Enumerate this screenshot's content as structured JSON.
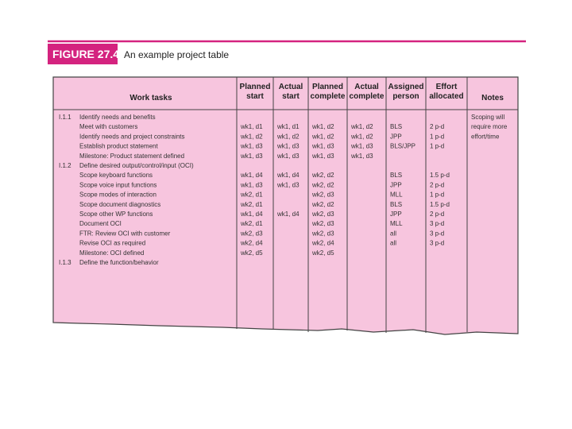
{
  "figure": {
    "label": "FIGURE 27.4",
    "caption": "An example project table"
  },
  "table": {
    "headers": [
      [
        "Work tasks"
      ],
      [
        "Planned",
        "start"
      ],
      [
        "Actual",
        "start"
      ],
      [
        "Planned",
        "complete"
      ],
      [
        "Actual",
        "complete"
      ],
      [
        "Assigned",
        "person"
      ],
      [
        "Effort",
        "allocated"
      ],
      [
        "Notes"
      ]
    ],
    "rows": [
      {
        "num": "I.1.1",
        "task": "Identify needs and benefits"
      },
      {
        "task": "Meet with customers",
        "planned_start": "wk1, d1",
        "actual_start": "wk1, d1",
        "planned_complete": "wk1, d2",
        "actual_complete": "wk1, d2",
        "person": "BLS",
        "effort": "2 p-d"
      },
      {
        "task": "Identify needs and project constraints",
        "planned_start": "wk1, d2",
        "actual_start": "wk1, d2",
        "planned_complete": "wk1, d2",
        "actual_complete": "wk1, d2",
        "person": "JPP",
        "effort": "1 p-d"
      },
      {
        "task": "Establish product statement",
        "planned_start": "wk1, d3",
        "actual_start": "wk1, d3",
        "planned_complete": "wk1, d3",
        "actual_complete": "wk1, d3",
        "person": "BLS/JPP",
        "effort": "1 p-d"
      },
      {
        "task": "Milestone: Product statement defined",
        "planned_start": "wk1, d3",
        "actual_start": "wk1, d3",
        "planned_complete": "wk1, d3",
        "actual_complete": "wk1, d3"
      },
      {
        "num": "I.1.2",
        "task": "Define desired output/control/input (OCI)"
      },
      {
        "task": "Scope keyboard functions",
        "planned_start": "wk1, d4",
        "actual_start": "wk1, d4",
        "planned_complete": "wk2, d2",
        "person": "BLS",
        "effort": "1.5 p-d"
      },
      {
        "task": "Scope voice input functions",
        "planned_start": "wk1, d3",
        "actual_start": "wk1, d3",
        "planned_complete": "wk2, d2",
        "person": "JPP",
        "effort": "2 p-d"
      },
      {
        "task": "Scope modes of interaction",
        "planned_start": "wk2, d1",
        "planned_complete": "wk2, d3",
        "person": "MLL",
        "effort": "1 p-d"
      },
      {
        "task": "Scope document diagnostics",
        "planned_start": "wk2, d1",
        "planned_complete": "wk2, d2",
        "person": "BLS",
        "effort": "1.5 p-d"
      },
      {
        "task": "Scope other WP functions",
        "planned_start": "wk1, d4",
        "actual_start": "wk1, d4",
        "planned_complete": "wk2, d3",
        "person": "JPP",
        "effort": "2 p-d"
      },
      {
        "task": "Document OCI",
        "planned_start": "wk2, d1",
        "planned_complete": "wk2, d3",
        "person": "MLL",
        "effort": "3 p-d"
      },
      {
        "task": "FTR: Review OCI with customer",
        "planned_start": "wk2, d3",
        "planned_complete": "wk2, d3",
        "person": "all",
        "effort": "3 p-d"
      },
      {
        "task": "Revise OCI as required",
        "planned_start": "wk2, d4",
        "planned_complete": "wk2, d4",
        "person": "all",
        "effort": "3 p-d"
      },
      {
        "task": "Milestone: OCI defined",
        "planned_start": "wk2, d5",
        "planned_complete": "wk2, d5"
      },
      {
        "num": "I.1.3",
        "task": "Define the function/behavior"
      }
    ],
    "notes": [
      "Scoping will",
      "require more",
      "effort/time"
    ]
  }
}
